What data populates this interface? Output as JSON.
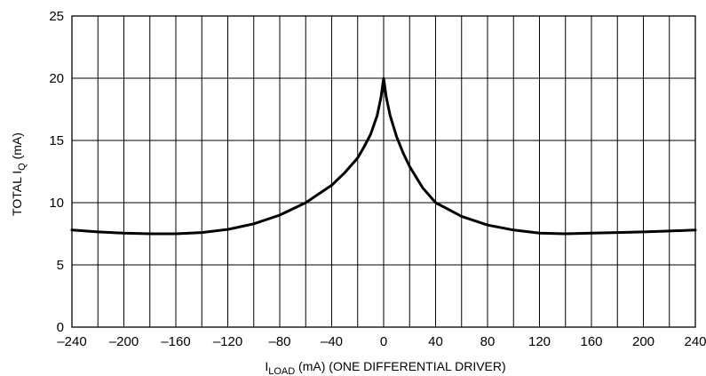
{
  "chart_data": {
    "type": "line",
    "xlabel": {
      "main": "I",
      "sub": "LOAD",
      "rest": " (mA) (ONE DIFFERENTIAL DRIVER)"
    },
    "ylabel": {
      "main": "TOTAL I",
      "sub": "Q",
      "rest": " (mA)"
    },
    "xlim": [
      -240,
      240
    ],
    "ylim": [
      0,
      25
    ],
    "x_ticks": [
      -240,
      -200,
      -160,
      -120,
      -80,
      -40,
      0,
      40,
      80,
      120,
      160,
      200,
      240
    ],
    "x_tick_labels": [
      "–240",
      "–200",
      "–160",
      "–120",
      "–80",
      "–40",
      "0",
      "40",
      "80",
      "120",
      "160",
      "200",
      "240"
    ],
    "y_ticks": [
      0,
      5,
      10,
      15,
      20,
      25
    ],
    "y_tick_labels": [
      "0",
      "5",
      "10",
      "15",
      "20",
      "25"
    ],
    "x_grid_step": 20,
    "y_grid_step": 5,
    "grid": true,
    "series": [
      {
        "color": "#000000",
        "x": [
          -240,
          -220,
          -200,
          -180,
          -160,
          -140,
          -120,
          -100,
          -80,
          -60,
          -40,
          -30,
          -20,
          -15,
          -10,
          -5,
          -2,
          0,
          2,
          5,
          10,
          15,
          20,
          30,
          40,
          60,
          80,
          100,
          120,
          140,
          160,
          180,
          200,
          220,
          240
        ],
        "y": [
          7.8,
          7.65,
          7.55,
          7.5,
          7.5,
          7.6,
          7.85,
          8.3,
          9.0,
          10.0,
          11.4,
          12.4,
          13.6,
          14.5,
          15.5,
          17.0,
          18.5,
          20.0,
          18.5,
          17.0,
          15.3,
          14.0,
          12.9,
          11.2,
          10.0,
          8.9,
          8.2,
          7.8,
          7.55,
          7.5,
          7.55,
          7.6,
          7.65,
          7.72,
          7.8
        ]
      }
    ]
  }
}
